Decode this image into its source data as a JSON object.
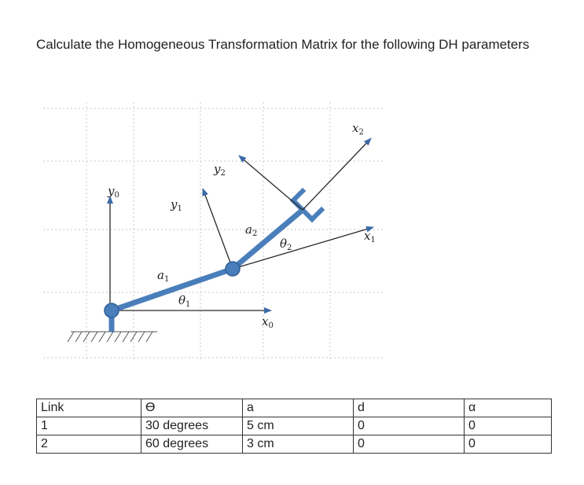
{
  "question": "Calculate the Homogeneous Transformation Matrix for the following DH parameters",
  "diagram": {
    "labels": {
      "y0": {
        "base": "y",
        "sub": "0"
      },
      "y1": {
        "base": "y",
        "sub": "1"
      },
      "y2": {
        "base": "y",
        "sub": "2"
      },
      "x0": {
        "base": "x",
        "sub": "0"
      },
      "x1": {
        "base": "x",
        "sub": "1"
      },
      "x2": {
        "base": "x",
        "sub": "2"
      },
      "a1": {
        "base": "a",
        "sub": "1"
      },
      "a2": {
        "base": "a",
        "sub": "2"
      },
      "theta1": {
        "base": "θ",
        "sub": "1"
      },
      "theta2": {
        "base": "θ",
        "sub": "2"
      }
    },
    "colors": {
      "link": "#4a7ebb",
      "axis": "#2a2a2a",
      "grid": "#c8c8c8"
    }
  },
  "table": {
    "headers": [
      "Link",
      "ϴ",
      "a",
      "d",
      "α"
    ],
    "rows": [
      [
        "1",
        "30 degrees",
        "5 cm",
        "0",
        "0"
      ],
      [
        "2",
        "60 degrees",
        "3 cm",
        "0",
        "0"
      ]
    ]
  }
}
